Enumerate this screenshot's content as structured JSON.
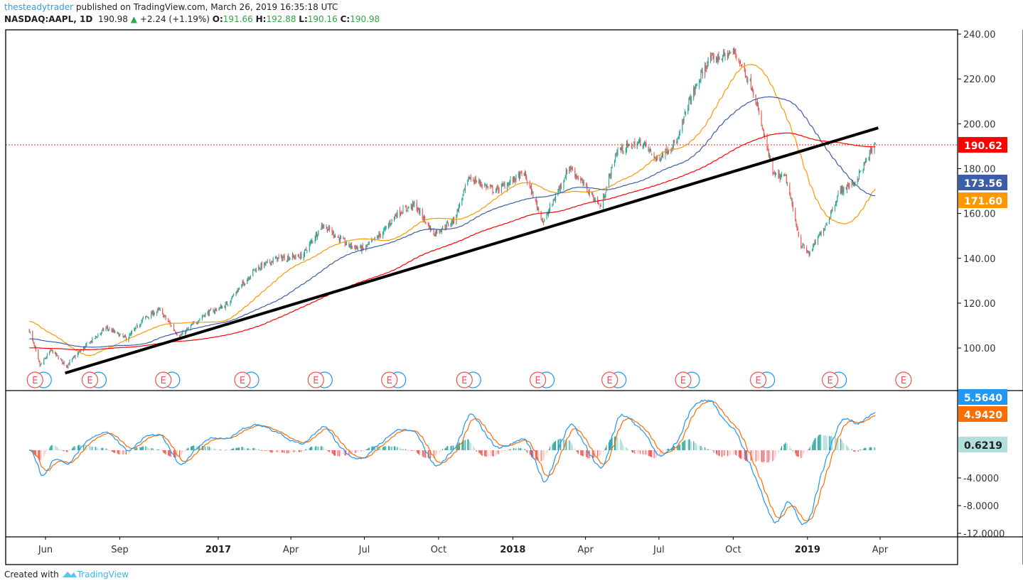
{
  "header": {
    "user": "thesteadytrader",
    "published": "published on TradingView.com, March 26, 2019 16:35:18 UTC",
    "symbol": "NASDAQ:AAPL, 1D",
    "last": "190.98",
    "change": "+2.24 (+1.19%)",
    "o_label": "O:",
    "o": "191.66",
    "h_label": "H:",
    "h": "192.88",
    "l_label": "L:",
    "l": "190.16",
    "c_label": "C:",
    "c": "190.98"
  },
  "footer": {
    "created_with": "Created with",
    "brand": "TradingView"
  },
  "chart_data": [
    {
      "type": "candlestick",
      "title": "NASDAQ:AAPL, 1D",
      "ylim": [
        86,
        242
      ],
      "price_ticks": [
        "240.00",
        "220.00",
        "200.00",
        "180.00",
        "160.00",
        "140.00",
        "120.00",
        "100.00"
      ],
      "time_ticks": [
        {
          "label": "Jun",
          "date": "2016-06-01",
          "bold": false
        },
        {
          "label": "Sep",
          "date": "2016-09-01",
          "bold": false
        },
        {
          "label": "2017",
          "date": "2017-01-01",
          "bold": true
        },
        {
          "label": "Apr",
          "date": "2017-04-01",
          "bold": false
        },
        {
          "label": "Jul",
          "date": "2017-07-01",
          "bold": false
        },
        {
          "label": "Oct",
          "date": "2017-10-01",
          "bold": false
        },
        {
          "label": "2018",
          "date": "2018-01-01",
          "bold": true
        },
        {
          "label": "Apr",
          "date": "2018-04-01",
          "bold": false
        },
        {
          "label": "Jul",
          "date": "2018-07-01",
          "bold": false
        },
        {
          "label": "Oct",
          "date": "2018-10-01",
          "bold": false
        },
        {
          "label": "2019",
          "date": "2019-01-01",
          "bold": true
        },
        {
          "label": "Apr",
          "date": "2019-04-01",
          "bold": false
        }
      ],
      "close_path": [
        [
          "2016-05-12",
          108
        ],
        [
          "2016-05-25",
          92
        ],
        [
          "2016-06-08",
          99
        ],
        [
          "2016-06-27",
          92
        ],
        [
          "2016-07-15",
          99
        ],
        [
          "2016-08-15",
          109
        ],
        [
          "2016-09-10",
          104
        ],
        [
          "2016-09-30",
          113
        ],
        [
          "2016-10-20",
          117
        ],
        [
          "2016-11-14",
          105
        ],
        [
          "2016-12-15",
          115
        ],
        [
          "2017-01-10",
          119
        ],
        [
          "2017-02-15",
          135
        ],
        [
          "2017-03-15",
          140
        ],
        [
          "2017-04-15",
          141
        ],
        [
          "2017-05-10",
          155
        ],
        [
          "2017-06-10",
          146
        ],
        [
          "2017-06-30",
          144
        ],
        [
          "2017-07-25",
          152
        ],
        [
          "2017-08-10",
          160
        ],
        [
          "2017-09-01",
          164
        ],
        [
          "2017-09-25",
          151
        ],
        [
          "2017-10-20",
          157
        ],
        [
          "2017-11-08",
          176
        ],
        [
          "2017-12-10",
          170
        ],
        [
          "2018-01-15",
          178
        ],
        [
          "2018-02-08",
          156
        ],
        [
          "2018-03-12",
          181
        ],
        [
          "2018-04-20",
          163
        ],
        [
          "2018-05-10",
          188
        ],
        [
          "2018-06-10",
          192
        ],
        [
          "2018-06-28",
          184
        ],
        [
          "2018-07-25",
          193
        ],
        [
          "2018-08-05",
          208
        ],
        [
          "2018-08-31",
          228
        ],
        [
          "2018-10-03",
          232
        ],
        [
          "2018-10-25",
          216
        ],
        [
          "2018-11-20",
          177
        ],
        [
          "2018-12-05",
          176
        ],
        [
          "2018-12-24",
          146
        ],
        [
          "2019-01-03",
          142
        ],
        [
          "2019-01-25",
          156
        ],
        [
          "2019-02-10",
          170
        ],
        [
          "2019-03-01",
          174
        ],
        [
          "2019-03-26",
          191
        ]
      ],
      "moving_averages": [
        {
          "period": 50,
          "color": "#ff9800",
          "last": "171.60"
        },
        {
          "period": 100,
          "color": "#3c5ea8",
          "last": "173.56"
        },
        {
          "period": 200,
          "color": "#ff0000",
          "last": "190.62"
        }
      ],
      "trendline": {
        "from": [
          "2016-06-27",
          89
        ],
        "to": [
          "2019-03-28",
          198
        ],
        "color": "#000000"
      },
      "price_line": {
        "value": "190.62",
        "color": "#ff0000"
      },
      "earnings_markers": [
        "2016-05-19",
        "2016-07-26",
        "2016-10-25",
        "2017-01-31",
        "2017-05-02",
        "2017-08-01",
        "2017-11-02",
        "2018-02-01",
        "2018-05-01",
        "2018-07-31",
        "2018-11-01",
        "2019-01-29",
        "2019-04-30"
      ],
      "earnings_label": "E",
      "colors": {
        "up": "#26a69a",
        "down": "#ef5350"
      }
    },
    {
      "type": "macd",
      "params": [
        12,
        26,
        9
      ],
      "ylim": [
        -12.5,
        8.5
      ],
      "ticks": [
        "-4.0000",
        "-8.0000",
        "-12.0000"
      ],
      "tick_values": [
        -4,
        -8,
        -12
      ],
      "macd_last": "5.5640",
      "signal_last": "4.9420",
      "hist_last": "0.6219",
      "colors": {
        "macd": "#2196f3",
        "signal": "#ff6d00",
        "hist_up": "#26a69a",
        "hist_up_light": "#b2dfdb",
        "hist_down": "#ef5350",
        "hist_down_light": "#ffcdd2"
      }
    }
  ]
}
